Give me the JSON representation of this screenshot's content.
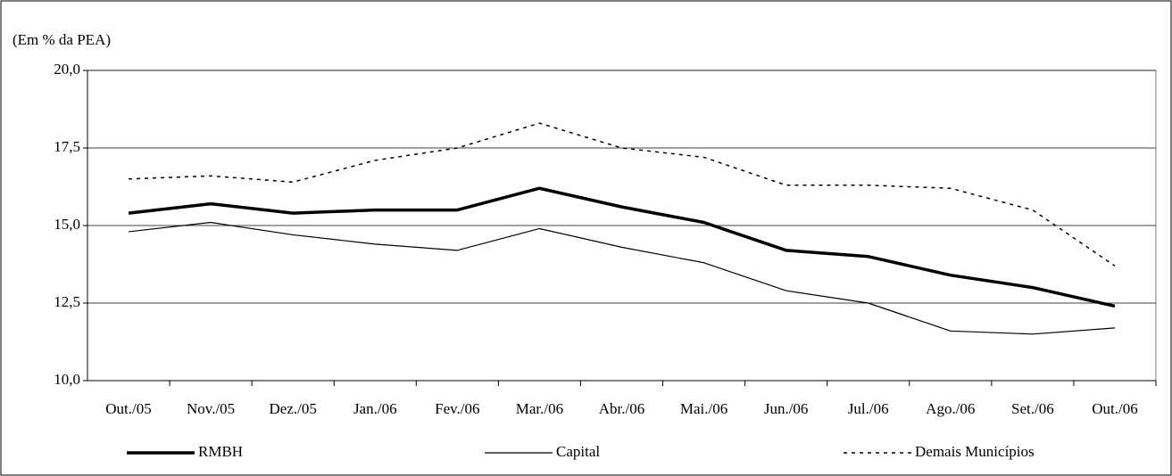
{
  "chart_data": {
    "type": "line",
    "y_label": "(Em % da PEA)",
    "categories": [
      "Out./05",
      "Nov./05",
      "Dez./05",
      "Jan./06",
      "Fev./06",
      "Mar./06",
      "Abr./06",
      "Mai./06",
      "Jun./06",
      "Jul./06",
      "Ago./06",
      "Set./06",
      "Out./06"
    ],
    "series": [
      {
        "name": "RMBH",
        "color": "#000000",
        "width": 3.5,
        "dash": false,
        "values": [
          15.4,
          15.7,
          15.4,
          15.5,
          15.5,
          16.2,
          15.6,
          15.1,
          14.2,
          14.0,
          13.4,
          13.0,
          12.4
        ]
      },
      {
        "name": "Capital",
        "color": "#000000",
        "width": 1.2,
        "dash": false,
        "values": [
          14.8,
          15.1,
          14.7,
          14.4,
          14.2,
          14.9,
          14.3,
          13.8,
          12.9,
          12.5,
          11.6,
          11.5,
          11.7
        ]
      },
      {
        "name": "Demais Municípios",
        "color": "#000000",
        "width": 1.5,
        "dash": true,
        "values": [
          16.5,
          16.6,
          16.4,
          17.1,
          17.5,
          18.3,
          17.5,
          17.2,
          16.3,
          16.3,
          16.2,
          15.5,
          13.7
        ]
      }
    ],
    "ylim": [
      10,
      20
    ],
    "yticks": [
      {
        "value": 10,
        "label": "10,0"
      },
      {
        "value": 12.5,
        "label": "12,5"
      },
      {
        "value": 15,
        "label": "15,0"
      },
      {
        "value": 17.5,
        "label": "17,5"
      },
      {
        "value": 20,
        "label": "20,0"
      }
    ],
    "grid": true,
    "legend": "bottom"
  }
}
